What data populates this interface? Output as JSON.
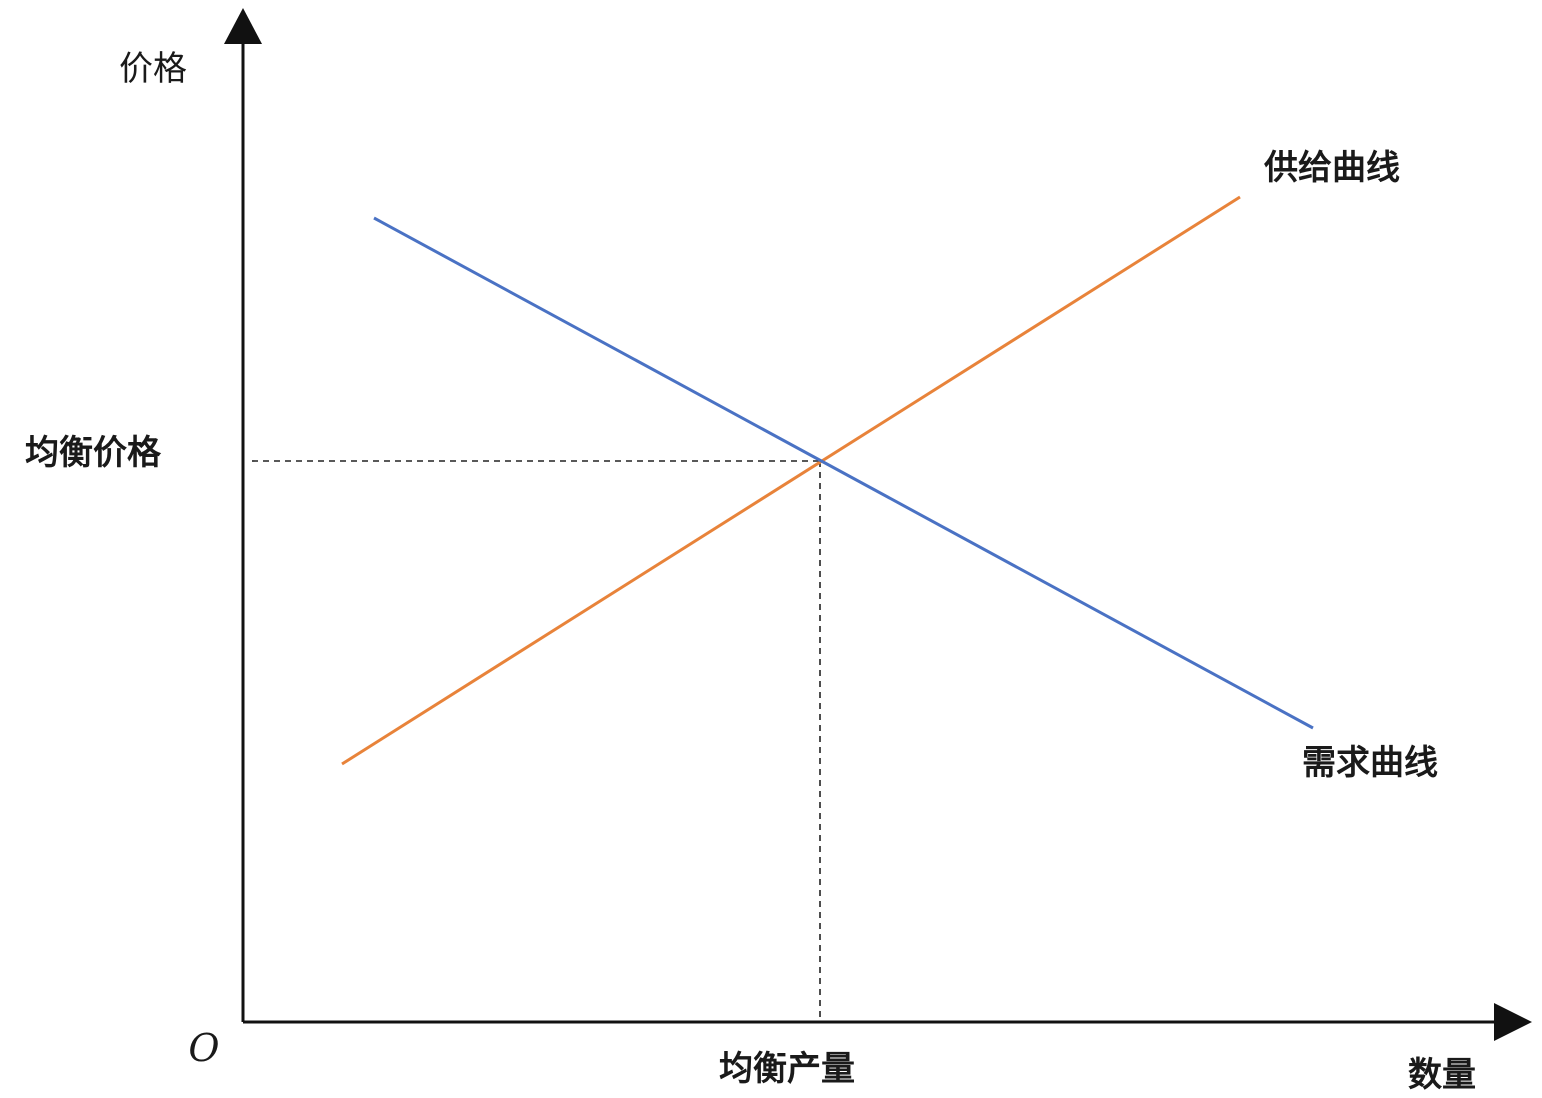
{
  "diagram": {
    "y_axis_label": "价格",
    "x_axis_label": "数量",
    "origin_label": "O",
    "equilibrium_price_label": "均衡价格",
    "equilibrium_quantity_label": "均衡产量",
    "supply_label": "供给曲线",
    "demand_label": "需求曲线"
  },
  "colors": {
    "supply": "#e8833a",
    "demand": "#4a72c4",
    "axis": "#111111",
    "guide": "#222222"
  }
}
